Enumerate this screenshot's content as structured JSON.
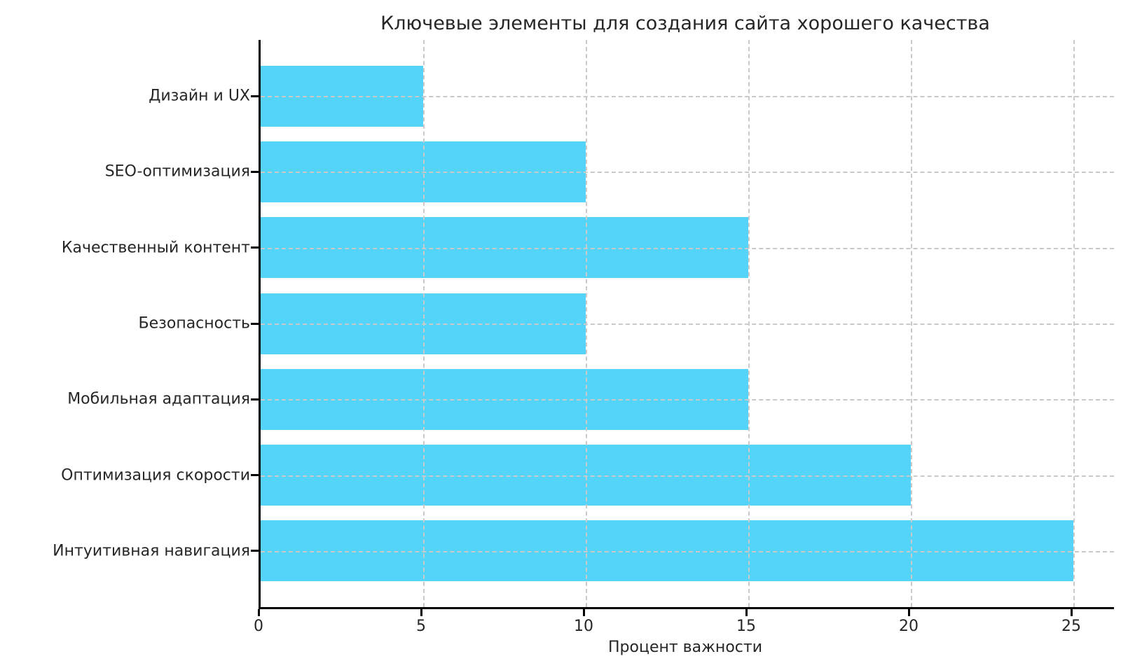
{
  "chart_data": {
    "type": "bar",
    "orientation": "horizontal",
    "title": "Ключевые элементы для создания сайта хорошего качества",
    "xlabel": "Процент важности",
    "ylabel": "",
    "categories": [
      "Дизайн и UX",
      "SEO-оптимизация",
      "Качественный контент",
      "Безопасность",
      "Мобильная адаптация",
      "Оптимизация скорости",
      "Интуитивная навигация"
    ],
    "values": [
      5,
      10,
      15,
      10,
      15,
      20,
      25
    ],
    "xticks": [
      0,
      5,
      10,
      15,
      20,
      25
    ],
    "xlim": [
      0,
      26.25
    ],
    "grid": true,
    "grid_style": "dashed",
    "legend_position": "none",
    "bar_color": "#55d4f9",
    "grid_color": "#c9c9c9",
    "axis_color": "#000000",
    "text_color": "#262626"
  }
}
